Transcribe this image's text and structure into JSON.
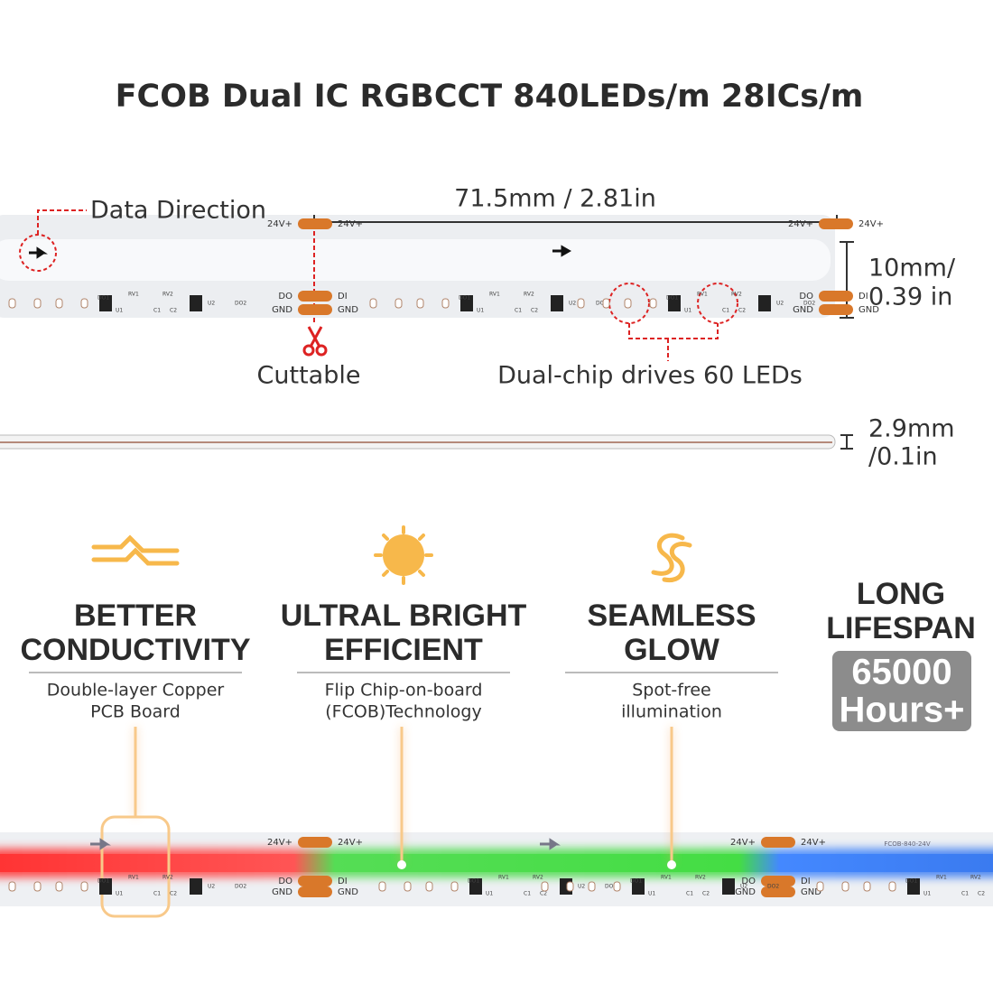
{
  "title": "FCOB Dual IC RGBCCT 840LEDs/m 28ICs/m",
  "dimensions": {
    "data_direction": "Data Direction",
    "length": "71.5mm / 2.81in",
    "width": [
      "10mm/",
      "0.39 in"
    ],
    "thickness": [
      "2.9mm",
      "/0.1in"
    ],
    "cuttable": "Cuttable",
    "dual_chip": "Dual-chip drives 60 LEDs"
  },
  "pads": {
    "power": "24V+",
    "out": "DO",
    "in": "DI",
    "ground": "GND"
  },
  "components": [
    "RV1",
    "DO1",
    "RV2",
    "U1",
    "C1",
    "U2",
    "C2",
    "DO2"
  ],
  "features": [
    {
      "title": [
        "BETTER",
        "CONDUCTIVITY"
      ],
      "description": [
        "Double-layer Copper",
        "PCB Board"
      ]
    },
    {
      "title": [
        "ULTRAL BRIGHT",
        "EFFICIENT"
      ],
      "description": [
        "Flip Chip-on-board",
        "(FCOB)Technology"
      ]
    },
    {
      "title": [
        "SEAMLESS",
        "GLOW"
      ],
      "description": [
        "Spot-free",
        "illumination"
      ]
    }
  ],
  "lifespan": {
    "title": [
      "LONG",
      "LIFESPAN"
    ],
    "badge": [
      "65000",
      "Hours+"
    ]
  },
  "strip_marking": "FCOB-840-24V"
}
